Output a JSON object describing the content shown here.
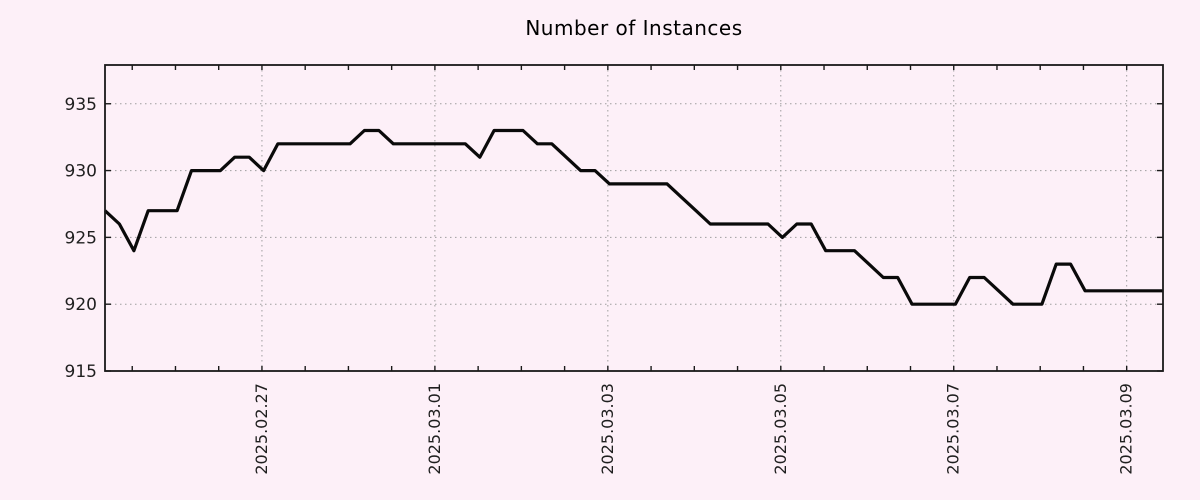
{
  "title": "Number of Instances",
  "colors": {
    "background": "#fdf0f8",
    "plot_background": "#fdf0f8",
    "line": "#0a0a0a",
    "grid": "#9e9e9e",
    "border": "#1a1a1a",
    "text": "#1f1f1f"
  },
  "chart_data": {
    "type": "line",
    "title": "Number of Instances",
    "xlabel": "",
    "ylabel": "",
    "legend": "none",
    "grid": "dotted",
    "y_ticks": [
      915,
      920,
      925,
      930,
      935
    ],
    "y_range": [
      915,
      937.9
    ],
    "x_unit": "days relative to 2025-02-27 00:00",
    "x_range": [
      -1.815,
      10.42
    ],
    "x_major_ticks": [
      {
        "day": 0,
        "label": "2025.02.27"
      },
      {
        "day": 2,
        "label": "2025.03.01"
      },
      {
        "day": 4,
        "label": "2025.03.03"
      },
      {
        "day": 6,
        "label": "2025.03.05"
      },
      {
        "day": 8,
        "label": "2025.03.07"
      },
      {
        "day": 10,
        "label": "2025.03.09"
      }
    ],
    "x_minor_tick_interval_days": 0.5,
    "sample_interval_hours": 4,
    "series": [
      {
        "name": "instances",
        "color": "#0a0a0a",
        "points": [
          [
            -1.815,
            927
          ],
          [
            -1.648,
            926
          ],
          [
            -1.481,
            924
          ],
          [
            -1.315,
            927
          ],
          [
            -0.981,
            927
          ],
          [
            -0.815,
            930
          ],
          [
            -0.481,
            930
          ],
          [
            -0.315,
            931
          ],
          [
            -0.148,
            931
          ],
          [
            0.019,
            930
          ],
          [
            0.185,
            932
          ],
          [
            1.019,
            932
          ],
          [
            1.185,
            933
          ],
          [
            1.352,
            933
          ],
          [
            1.519,
            932
          ],
          [
            2.352,
            932
          ],
          [
            2.519,
            931
          ],
          [
            2.685,
            933
          ],
          [
            3.019,
            933
          ],
          [
            3.185,
            932
          ],
          [
            3.352,
            932
          ],
          [
            3.519,
            931
          ],
          [
            3.685,
            930
          ],
          [
            3.852,
            930
          ],
          [
            4.019,
            929
          ],
          [
            4.685,
            929
          ],
          [
            4.852,
            928
          ],
          [
            5.019,
            927
          ],
          [
            5.185,
            926
          ],
          [
            5.852,
            926
          ],
          [
            6.019,
            925
          ],
          [
            6.185,
            926
          ],
          [
            6.352,
            926
          ],
          [
            6.519,
            924
          ],
          [
            6.852,
            924
          ],
          [
            7.019,
            923
          ],
          [
            7.185,
            922
          ],
          [
            7.352,
            922
          ],
          [
            7.519,
            920
          ],
          [
            8.019,
            920
          ],
          [
            8.185,
            922
          ],
          [
            8.352,
            922
          ],
          [
            8.519,
            921
          ],
          [
            8.685,
            920
          ],
          [
            9.019,
            920
          ],
          [
            9.185,
            923
          ],
          [
            9.352,
            923
          ],
          [
            9.519,
            921
          ],
          [
            10.42,
            921
          ]
        ]
      }
    ]
  }
}
